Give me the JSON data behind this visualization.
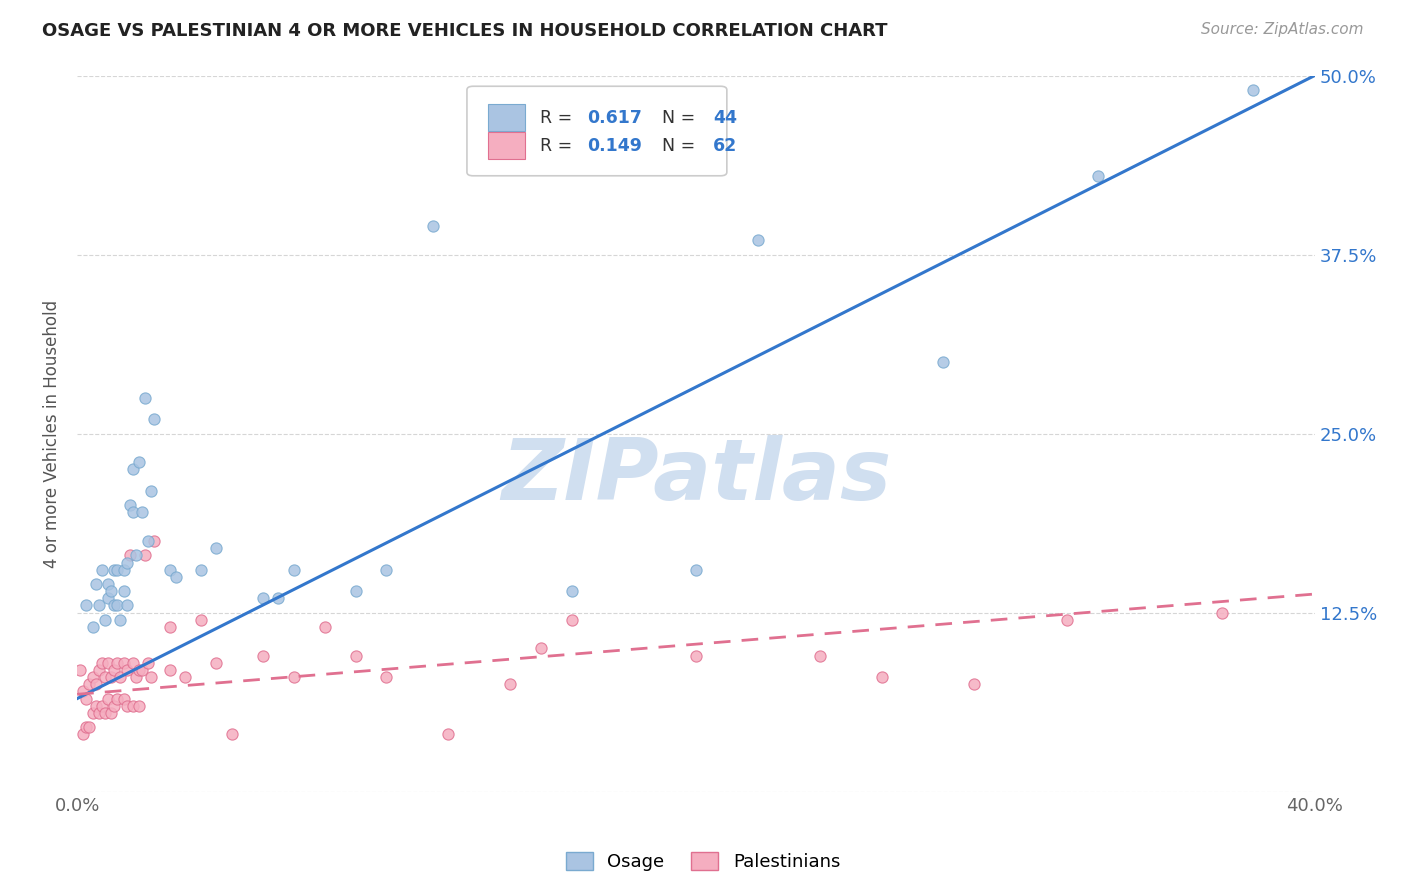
{
  "title": "OSAGE VS PALESTINIAN 4 OR MORE VEHICLES IN HOUSEHOLD CORRELATION CHART",
  "source": "Source: ZipAtlas.com",
  "ylabel": "4 or more Vehicles in Household",
  "xlim": [
    0.0,
    0.4
  ],
  "ylim": [
    0.0,
    0.5
  ],
  "xticks": [
    0.0,
    0.1,
    0.2,
    0.3,
    0.4
  ],
  "yticks": [
    0.0,
    0.125,
    0.25,
    0.375,
    0.5
  ],
  "yticklabels": [
    "",
    "12.5%",
    "25.0%",
    "37.5%",
    "50.0%"
  ],
  "osage_R": 0.617,
  "osage_N": 44,
  "palestinian_R": 0.149,
  "palestinian_N": 62,
  "osage_color": "#aac4e2",
  "osage_edge": "#7aaad0",
  "palestinian_color": "#f5aec0",
  "palestinian_edge": "#e07090",
  "osage_line_color": "#3377cc",
  "palestinian_line_color": "#e07090",
  "legend_R_color": "#3377cc",
  "legend_N_color": "#3377cc",
  "watermark_color": "#d0dff0",
  "legend_label_osage": "Osage",
  "legend_label_palestinian": "Palestinians",
  "osage_line_x0": 0.0,
  "osage_line_y0": 0.065,
  "osage_line_x1": 0.4,
  "osage_line_y1": 0.5,
  "pal_line_x0": 0.0,
  "pal_line_y0": 0.068,
  "pal_line_x1": 0.4,
  "pal_line_y1": 0.138,
  "osage_x": [
    0.003,
    0.005,
    0.006,
    0.007,
    0.008,
    0.009,
    0.01,
    0.01,
    0.011,
    0.012,
    0.012,
    0.013,
    0.013,
    0.014,
    0.015,
    0.015,
    0.016,
    0.016,
    0.017,
    0.018,
    0.018,
    0.019,
    0.02,
    0.021,
    0.022,
    0.023,
    0.024,
    0.025,
    0.03,
    0.032,
    0.04,
    0.045,
    0.06,
    0.065,
    0.07,
    0.09,
    0.1,
    0.115,
    0.16,
    0.2,
    0.22,
    0.28,
    0.33,
    0.38
  ],
  "osage_y": [
    0.13,
    0.115,
    0.145,
    0.13,
    0.155,
    0.12,
    0.145,
    0.135,
    0.14,
    0.13,
    0.155,
    0.155,
    0.13,
    0.12,
    0.155,
    0.14,
    0.16,
    0.13,
    0.2,
    0.195,
    0.225,
    0.165,
    0.23,
    0.195,
    0.275,
    0.175,
    0.21,
    0.26,
    0.155,
    0.15,
    0.155,
    0.17,
    0.135,
    0.135,
    0.155,
    0.14,
    0.155,
    0.395,
    0.14,
    0.155,
    0.385,
    0.3,
    0.43,
    0.49
  ],
  "palestinian_x": [
    0.001,
    0.002,
    0.002,
    0.003,
    0.003,
    0.004,
    0.004,
    0.005,
    0.005,
    0.006,
    0.006,
    0.007,
    0.007,
    0.008,
    0.008,
    0.009,
    0.009,
    0.01,
    0.01,
    0.011,
    0.011,
    0.012,
    0.012,
    0.013,
    0.013,
    0.014,
    0.015,
    0.015,
    0.016,
    0.016,
    0.017,
    0.018,
    0.018,
    0.019,
    0.02,
    0.02,
    0.021,
    0.022,
    0.023,
    0.024,
    0.025,
    0.03,
    0.03,
    0.035,
    0.04,
    0.045,
    0.05,
    0.06,
    0.07,
    0.08,
    0.09,
    0.1,
    0.12,
    0.14,
    0.15,
    0.16,
    0.2,
    0.24,
    0.26,
    0.29,
    0.32,
    0.37
  ],
  "palestinian_y": [
    0.085,
    0.07,
    0.04,
    0.065,
    0.045,
    0.075,
    0.045,
    0.08,
    0.055,
    0.075,
    0.06,
    0.085,
    0.055,
    0.09,
    0.06,
    0.08,
    0.055,
    0.09,
    0.065,
    0.08,
    0.055,
    0.085,
    0.06,
    0.09,
    0.065,
    0.08,
    0.09,
    0.065,
    0.085,
    0.06,
    0.165,
    0.09,
    0.06,
    0.08,
    0.085,
    0.06,
    0.085,
    0.165,
    0.09,
    0.08,
    0.175,
    0.085,
    0.115,
    0.08,
    0.12,
    0.09,
    0.04,
    0.095,
    0.08,
    0.115,
    0.095,
    0.08,
    0.04,
    0.075,
    0.1,
    0.12,
    0.095,
    0.095,
    0.08,
    0.075,
    0.12,
    0.125
  ]
}
